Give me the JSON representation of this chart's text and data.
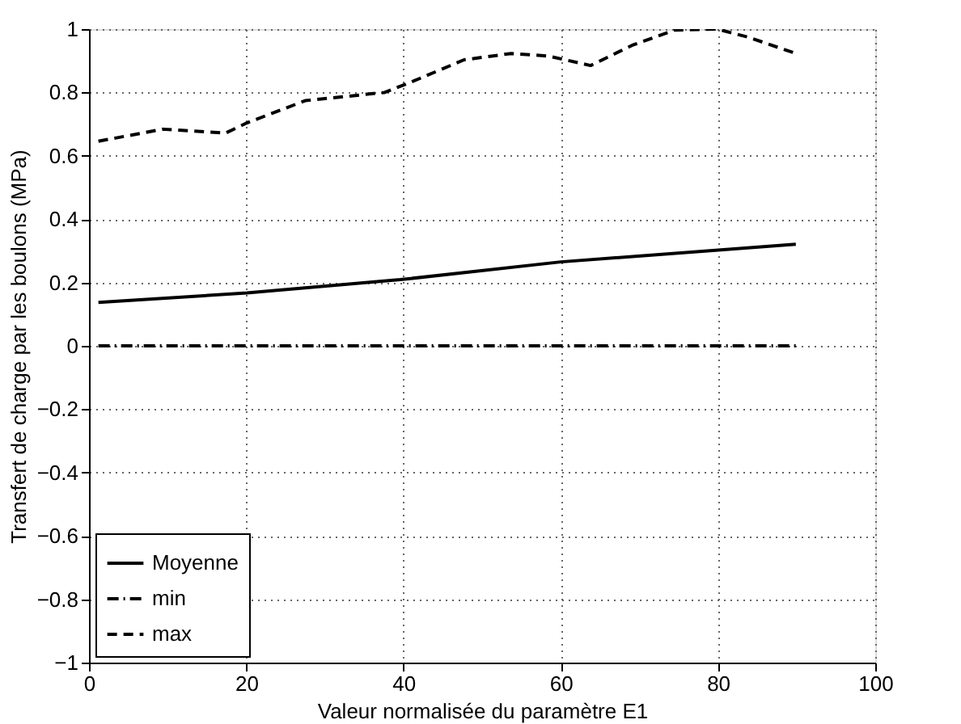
{
  "chart_data": {
    "type": "line",
    "xlabel": "Valeur normalisée du paramètre E1",
    "ylabel": "Transfert de charge par les boulons (MPa)",
    "xlim": [
      0,
      100
    ],
    "xticks": [
      0,
      20,
      40,
      60,
      80,
      100
    ],
    "ylim": [
      -1,
      1
    ],
    "yticks": [
      {
        "value": -1,
        "label": "−1"
      },
      {
        "value": -0.8,
        "label": "−0.8"
      },
      {
        "value": -0.6,
        "label": "−0.6"
      },
      {
        "value": -0.4,
        "label": "−0.4"
      },
      {
        "value": -0.2,
        "label": "−0.2"
      },
      0,
      0.2,
      0.4,
      0.6,
      0.8,
      1
    ],
    "grid": true,
    "legend": "bottom left",
    "series": [
      {
        "name": "Moyenne",
        "color": "#000000",
        "line_style": "solid",
        "x": [
          1.2,
          20.1,
          39.6,
          60,
          89.9
        ],
        "values": [
          0.137,
          0.167,
          0.209,
          0.265,
          0.321
        ]
      },
      {
        "name": "min",
        "color": "#000000",
        "line_style": "dashdot",
        "x": [
          1.2,
          89.9
        ],
        "values": [
          0,
          0
        ]
      },
      {
        "name": "max",
        "color": "#000000",
        "line_style": "dashed",
        "x": [
          1.2,
          9.4,
          17.4,
          20.1,
          27.5,
          37.6,
          40.9,
          47.7,
          53.7,
          58.4,
          63.8,
          69.1,
          74.5,
          79.9,
          83.9,
          89.9
        ],
        "values": [
          0.646,
          0.684,
          0.672,
          0.704,
          0.774,
          0.8,
          0.832,
          0.903,
          0.923,
          0.915,
          0.885,
          0.949,
          0.997,
          1.0,
          0.974,
          0.923
        ]
      }
    ]
  }
}
